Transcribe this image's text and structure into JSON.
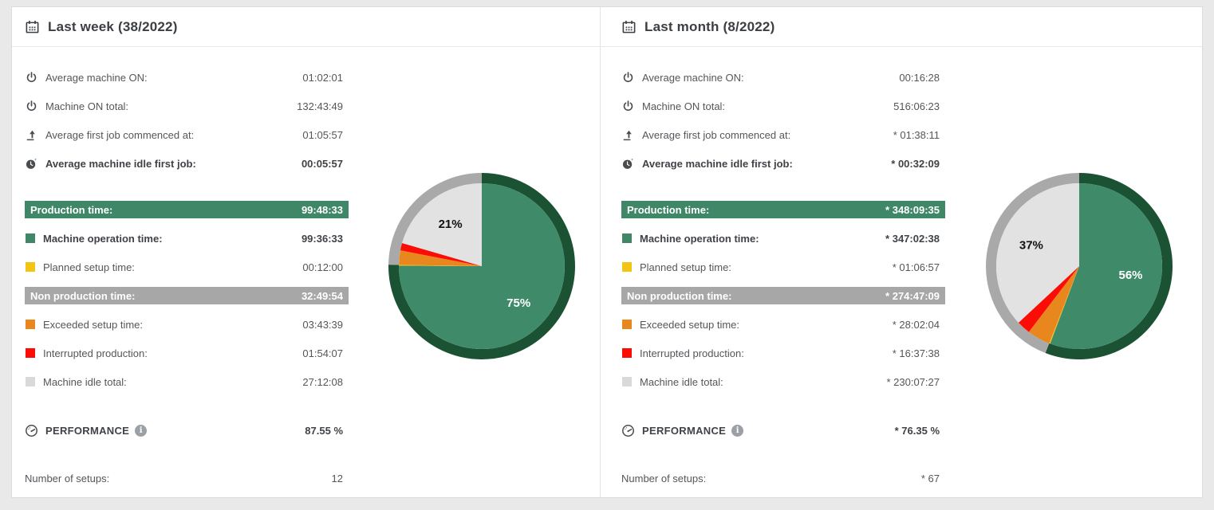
{
  "colors": {
    "pie_green": "#3F8A68",
    "ring_dark_green": "#1A5233",
    "ring_gray": "#A9A9A9",
    "slice_light_gray": "#E2E2E2",
    "yellow": "#F2C513",
    "orange": "#E8871E",
    "red": "#FB0C05",
    "banner_green": "#3F8767",
    "banner_gray": "#A6A7A6"
  },
  "icons": {
    "info_glyph": "i"
  },
  "panels": [
    {
      "title": "Last week (38/2022)",
      "stats": [
        {
          "label": "Average machine ON:",
          "value": "01:02:01"
        },
        {
          "label": "Machine ON total:",
          "value": "132:43:49"
        },
        {
          "label": "Average first job commenced at:",
          "value": "01:05:57"
        },
        {
          "label": "Average machine idle first job:",
          "value": "00:05:57"
        }
      ],
      "production": {
        "label": "Production time:",
        "value": "99:48:33"
      },
      "nonproduction": {
        "label": "Non production time:",
        "value": "32:49:54"
      },
      "legend": [
        {
          "label": "Machine operation time:",
          "value": "99:36:33"
        },
        {
          "label": "Planned setup time:",
          "value": "00:12:00"
        },
        {
          "label": "Exceeded setup time:",
          "value": "03:43:39"
        },
        {
          "label": "Interrupted production:",
          "value": "01:54:07"
        },
        {
          "label": "Machine idle total:",
          "value": "27:12:08"
        }
      ],
      "performance": {
        "label": "PERFORMANCE",
        "value": "87.55 %"
      },
      "setups": {
        "label": "Number of setups:",
        "value": "12"
      },
      "chart_data": {
        "type": "pie",
        "title": "Last week time distribution",
        "slices": [
          {
            "name": "Machine operation time",
            "pct": 75.1,
            "color": "#3F8A68"
          },
          {
            "name": "Planned setup time",
            "pct": 0.15,
            "color": "#F2C513"
          },
          {
            "name": "Exceeded setup time",
            "pct": 2.81,
            "color": "#E8871E"
          },
          {
            "name": "Interrupted production",
            "pct": 1.43,
            "color": "#FB0C05"
          },
          {
            "name": "Machine idle total",
            "pct": 20.51,
            "color": "#E2E2E2"
          }
        ],
        "ring": [
          {
            "name": "Production time",
            "pct": 75.25,
            "color": "#1A5233"
          },
          {
            "name": "Non production time",
            "pct": 24.75,
            "color": "#A9A9A9"
          }
        ],
        "labels": [
          {
            "slice": 0,
            "text": "75%",
            "color": "#FFFFFF"
          },
          {
            "slice": 4,
            "text": "21%",
            "color": "#111111"
          }
        ]
      }
    },
    {
      "title": "Last month (8/2022)",
      "stats": [
        {
          "label": "Average machine ON:",
          "value": "00:16:28"
        },
        {
          "label": "Machine ON total:",
          "value": "516:06:23"
        },
        {
          "label": "Average first job commenced at:",
          "value": "* 01:38:11"
        },
        {
          "label": "Average machine idle first job:",
          "value": "* 00:32:09"
        }
      ],
      "production": {
        "label": "Production time:",
        "value": "* 348:09:35"
      },
      "nonproduction": {
        "label": "Non production time:",
        "value": "* 274:47:09"
      },
      "legend": [
        {
          "label": "Machine operation time:",
          "value": "* 347:02:38"
        },
        {
          "label": "Planned setup time:",
          "value": "* 01:06:57"
        },
        {
          "label": "Exceeded setup time:",
          "value": "* 28:02:04"
        },
        {
          "label": "Interrupted production:",
          "value": "* 16:37:38"
        },
        {
          "label": "Machine idle total:",
          "value": "* 230:07:27"
        }
      ],
      "performance": {
        "label": "PERFORMANCE",
        "value": "* 76.35 %"
      },
      "setups": {
        "label": "Number of setups:",
        "value": "* 67"
      },
      "chart_data": {
        "type": "pie",
        "title": "Last month time distribution",
        "slices": [
          {
            "name": "Machine operation time",
            "pct": 55.71,
            "color": "#3F8A68"
          },
          {
            "name": "Planned setup time",
            "pct": 0.18,
            "color": "#F2C513"
          },
          {
            "name": "Exceeded setup time",
            "pct": 4.5,
            "color": "#E8871E"
          },
          {
            "name": "Interrupted production",
            "pct": 2.67,
            "color": "#FB0C05"
          },
          {
            "name": "Machine idle total",
            "pct": 36.94,
            "color": "#E2E2E2"
          }
        ],
        "ring": [
          {
            "name": "Production time",
            "pct": 55.9,
            "color": "#1A5233"
          },
          {
            "name": "Non production time",
            "pct": 44.1,
            "color": "#A9A9A9"
          }
        ],
        "labels": [
          {
            "slice": 0,
            "text": "56%",
            "color": "#FFFFFF"
          },
          {
            "slice": 4,
            "text": "37%",
            "color": "#111111"
          }
        ]
      }
    }
  ]
}
